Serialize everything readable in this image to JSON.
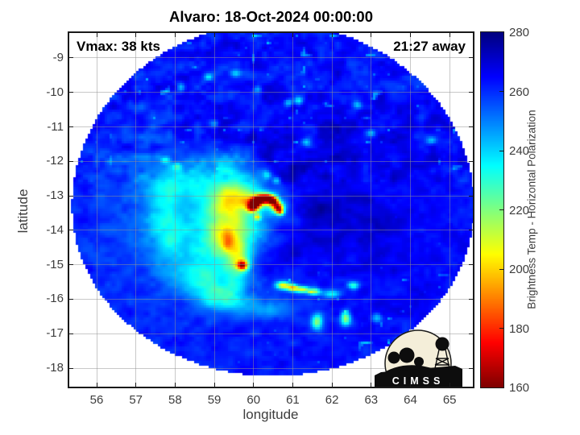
{
  "title": "Alvaro: 18-Oct-2024 00:00:00",
  "overlay": {
    "vmax": "Vmax: 38 kts",
    "away": "21:27 away"
  },
  "axes": {
    "xlabel": "longitude",
    "ylabel": "latitude",
    "xticks": [
      56,
      57,
      58,
      59,
      60,
      61,
      62,
      63,
      64,
      65
    ],
    "yticks": [
      -9,
      -10,
      -11,
      -12,
      -13,
      -14,
      -15,
      -16,
      -17,
      -18
    ],
    "xlim": [
      55.281,
      65.613
    ],
    "ylim": [
      -18.561,
      -8.252
    ]
  },
  "colorbar": {
    "label": "Brightness Temp - Horizontal Polarization",
    "ticks": [
      280,
      260,
      240,
      220,
      200,
      180,
      160
    ],
    "min": 160,
    "max": 280,
    "colormap": "jet_reversed"
  },
  "logo": {
    "text": "CIMSS"
  },
  "colors": {
    "ocean_blue": "#0023f0",
    "grid": "#919191",
    "axis": "#1a1a1a",
    "tick_text": "#3d3d3d",
    "logo_bg": "#f4eed9",
    "cold_core_red": "#8b0000"
  },
  "chart_data": {
    "type": "heatmap",
    "title": "Alvaro: 18-Oct-2024 00:00:00",
    "xlabel": "longitude",
    "ylabel": "latitude",
    "value_label": "Brightness Temp - Horizontal Polarization (K)",
    "value_range": [
      160,
      280
    ],
    "xlim": [
      55.281,
      65.613
    ],
    "ylim": [
      -18.561,
      -8.252
    ],
    "grid": true,
    "background_temp_k": 263,
    "storm": {
      "name": "Alvaro",
      "vmax_kts": 38,
      "eye_lon": 60.3,
      "eye_lat": -13.3,
      "min_tb_k": 163
    },
    "swath": {
      "center_lon": 60.5,
      "center_lat": -13.32,
      "radius_lon_deg": 5.13,
      "radius_lat_up_deg": 5.33,
      "radius_lat_down_deg": 4.91
    },
    "noise": {
      "amp_coarse_k": 3.5,
      "scale_coarse": 2.8,
      "amp_fine_k": 2.5,
      "scale_fine": 7.0,
      "speckle_delta_k": -22
    },
    "features_format": [
      "lon",
      "lat",
      "sigma_lon_deg",
      "sigma_lat_deg",
      "delta_temp_k"
    ],
    "features": [
      [
        57.8,
        -14.0,
        1.3,
        1.8,
        -5
      ],
      [
        56.9,
        -12.9,
        0.8,
        1.5,
        -4
      ],
      [
        62.1,
        -11.4,
        1.5,
        1.3,
        4
      ],
      [
        63.4,
        -14.6,
        1.2,
        1.5,
        3
      ],
      [
        59.3,
        -13.6,
        1.05,
        1.35,
        -16
      ],
      [
        59.3,
        -12.45,
        0.7,
        0.45,
        -10
      ],
      [
        59.35,
        -13.9,
        0.6,
        0.95,
        -14
      ],
      [
        59.4,
        -13.9,
        0.38,
        0.75,
        -22
      ],
      [
        59.45,
        -13.05,
        0.3,
        0.25,
        -20
      ],
      [
        59.9,
        -13.15,
        0.18,
        0.15,
        -25
      ],
      [
        59.3,
        -14.25,
        0.22,
        0.3,
        -12
      ],
      [
        59.35,
        -14.35,
        0.1,
        0.18,
        -18
      ],
      [
        59.6,
        -14.6,
        0.15,
        0.25,
        -15
      ],
      [
        59.975,
        -13.34,
        0.09,
        0.09,
        -65
      ],
      [
        60.05,
        -13.19,
        0.09,
        0.09,
        -65
      ],
      [
        60.19,
        -13.09,
        0.09,
        0.09,
        -65
      ],
      [
        60.36,
        -13.075,
        0.09,
        0.09,
        -65
      ],
      [
        60.51,
        -13.15,
        0.09,
        0.09,
        -65
      ],
      [
        60.625,
        -13.34,
        0.09,
        0.09,
        -65
      ],
      [
        60.05,
        -13.2,
        0.17,
        0.17,
        -22
      ],
      [
        60.33,
        -13.1,
        0.17,
        0.17,
        -22
      ],
      [
        60.58,
        -13.3,
        0.17,
        0.17,
        -22
      ],
      [
        60.68,
        -13.47,
        0.07,
        0.07,
        -45
      ],
      [
        60.1,
        -13.62,
        0.06,
        0.06,
        -40
      ],
      [
        59.72,
        -15.02,
        0.09,
        0.09,
        -60
      ],
      [
        59.7,
        -14.95,
        0.2,
        0.2,
        -25
      ],
      [
        59.55,
        -15.5,
        0.2,
        0.4,
        -12
      ],
      [
        59.25,
        -15.9,
        0.25,
        0.35,
        -10
      ],
      [
        58.75,
        -15.55,
        0.3,
        0.4,
        -10
      ],
      [
        57.95,
        -12.6,
        0.45,
        0.35,
        -12
      ],
      [
        57.7,
        -13.4,
        0.3,
        0.7,
        -13
      ],
      [
        57.9,
        -14.4,
        0.35,
        0.5,
        -13
      ],
      [
        58.45,
        -15.3,
        0.4,
        0.4,
        -12
      ],
      [
        59.05,
        -15.95,
        0.5,
        0.3,
        -11
      ],
      [
        59.85,
        -16.2,
        0.5,
        0.25,
        -10
      ],
      [
        60.6,
        -16.3,
        0.4,
        0.2,
        -10
      ],
      [
        60.75,
        -15.6,
        0.12,
        0.08,
        -55
      ],
      [
        61.0,
        -15.67,
        0.1,
        0.07,
        -60
      ],
      [
        61.25,
        -15.72,
        0.12,
        0.07,
        -50
      ],
      [
        61.55,
        -15.78,
        0.12,
        0.07,
        -45
      ],
      [
        62.0,
        -15.85,
        0.15,
        0.08,
        -30
      ],
      [
        62.55,
        -15.6,
        0.1,
        0.08,
        -35
      ],
      [
        61.62,
        -16.65,
        0.1,
        0.16,
        -45
      ],
      [
        62.35,
        -16.55,
        0.09,
        0.14,
        -48
      ],
      [
        63.15,
        -16.55,
        0.1,
        0.1,
        -25
      ],
      [
        60.35,
        -14.9,
        0.45,
        0.4,
        9
      ],
      [
        61.2,
        -14.35,
        0.6,
        0.45,
        7
      ],
      [
        60.9,
        -12.3,
        0.5,
        0.4,
        8
      ],
      [
        62.5,
        -13.6,
        0.8,
        0.6,
        5
      ],
      [
        58.9,
        -11.2,
        0.6,
        0.4,
        6
      ],
      [
        60.3,
        -11.55,
        0.5,
        0.35,
        7
      ],
      [
        61.7,
        -13.3,
        0.4,
        0.3,
        7
      ],
      [
        58.15,
        -9.85,
        0.08,
        0.08,
        -22
      ],
      [
        58.85,
        -9.55,
        0.08,
        0.08,
        -22
      ],
      [
        59.55,
        -9.45,
        0.08,
        0.08,
        -22
      ],
      [
        60.1,
        -9.9,
        0.08,
        0.08,
        -22
      ],
      [
        60.9,
        -10.3,
        0.08,
        0.08,
        -22
      ],
      [
        61.15,
        -10.25,
        0.08,
        0.08,
        -30
      ],
      [
        62.65,
        -10.35,
        0.08,
        0.08,
        -22
      ],
      [
        61.35,
        -11.45,
        0.08,
        0.08,
        -22
      ],
      [
        63.0,
        -11.2,
        0.08,
        0.08,
        -22
      ],
      [
        64.55,
        -11.4,
        0.08,
        0.08,
        -22
      ],
      [
        57.75,
        -11.95,
        0.08,
        0.08,
        -22
      ],
      [
        58.05,
        -12.15,
        0.08,
        0.08,
        -22
      ],
      [
        60.35,
        -12.4,
        0.08,
        0.08,
        -22
      ],
      [
        60.6,
        -12.55,
        0.08,
        0.08,
        -22
      ],
      [
        59.0,
        -10.9,
        0.08,
        0.08,
        -22
      ]
    ]
  }
}
